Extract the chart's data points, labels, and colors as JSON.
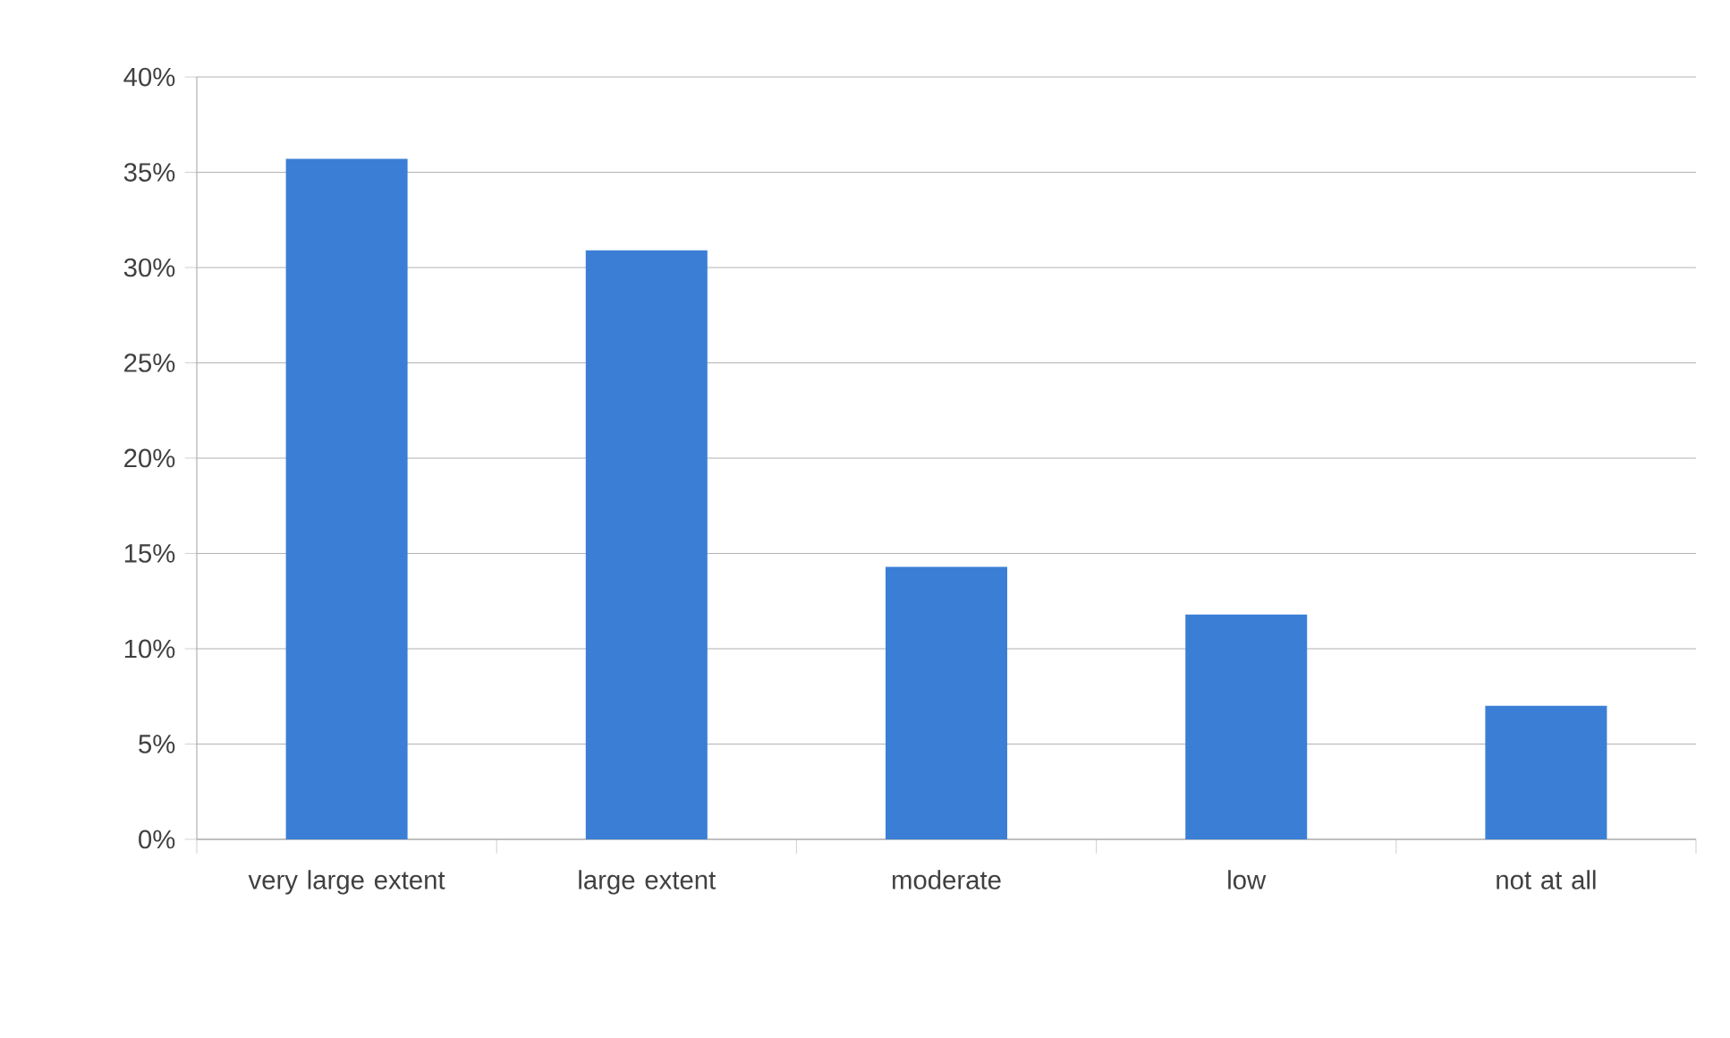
{
  "chart_data": {
    "type": "bar",
    "categories": [
      "very large extent",
      "large extent",
      "moderate",
      "low",
      "not at all"
    ],
    "values": [
      35.7,
      30.9,
      14.3,
      11.8,
      7.0
    ],
    "color": "#3a7fd5",
    "ylim": [
      0,
      40
    ],
    "yticks": [
      {
        "value": 0,
        "label": "0%"
      },
      {
        "value": 5,
        "label": "5%"
      },
      {
        "value": 10,
        "label": "10%"
      },
      {
        "value": 15,
        "label": "15%"
      },
      {
        "value": 20,
        "label": "20%"
      },
      {
        "value": 25,
        "label": "25%"
      },
      {
        "value": 30,
        "label": "30%"
      },
      {
        "value": 35,
        "label": "35%"
      },
      {
        "value": 40,
        "label": "40%"
      }
    ],
    "grid": "y"
  }
}
